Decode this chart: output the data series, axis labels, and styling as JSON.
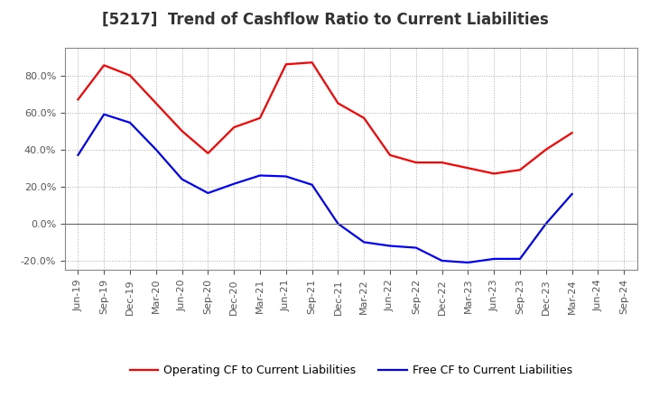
{
  "title": "[5217]  Trend of Cashflow Ratio to Current Liabilities",
  "x_labels": [
    "Jun-19",
    "Sep-19",
    "Dec-19",
    "Mar-20",
    "Jun-20",
    "Sep-20",
    "Dec-20",
    "Mar-21",
    "Jun-21",
    "Sep-21",
    "Dec-21",
    "Mar-22",
    "Jun-22",
    "Sep-22",
    "Dec-22",
    "Mar-23",
    "Jun-23",
    "Sep-23",
    "Dec-23",
    "Mar-24",
    "Jun-24",
    "Sep-24"
  ],
  "operating_cf": [
    0.67,
    0.855,
    0.8,
    0.65,
    0.5,
    0.38,
    0.52,
    0.57,
    0.86,
    0.87,
    0.65,
    0.57,
    0.37,
    0.33,
    0.33,
    0.3,
    0.27,
    0.29,
    0.4,
    0.49,
    null,
    null
  ],
  "free_cf": [
    0.37,
    0.59,
    0.545,
    0.4,
    0.24,
    0.165,
    0.215,
    0.26,
    0.255,
    0.21,
    0.0,
    -0.1,
    -0.12,
    -0.13,
    -0.2,
    -0.21,
    -0.19,
    -0.19,
    0.0,
    0.16,
    null,
    null
  ],
  "ylim": [
    -0.25,
    0.95
  ],
  "yticks": [
    -0.2,
    0.0,
    0.2,
    0.4,
    0.6,
    0.8
  ],
  "operating_color": "#FF0000",
  "free_color": "#0000FF",
  "legend_operating": "Operating CF to Current Liabilities",
  "legend_free": "Free CF to Current Liabilities",
  "background_color": "#FFFFFF",
  "plot_bg_color": "#FFFFFF",
  "title_fontsize": 12,
  "tick_fontsize": 8,
  "legend_fontsize": 9
}
